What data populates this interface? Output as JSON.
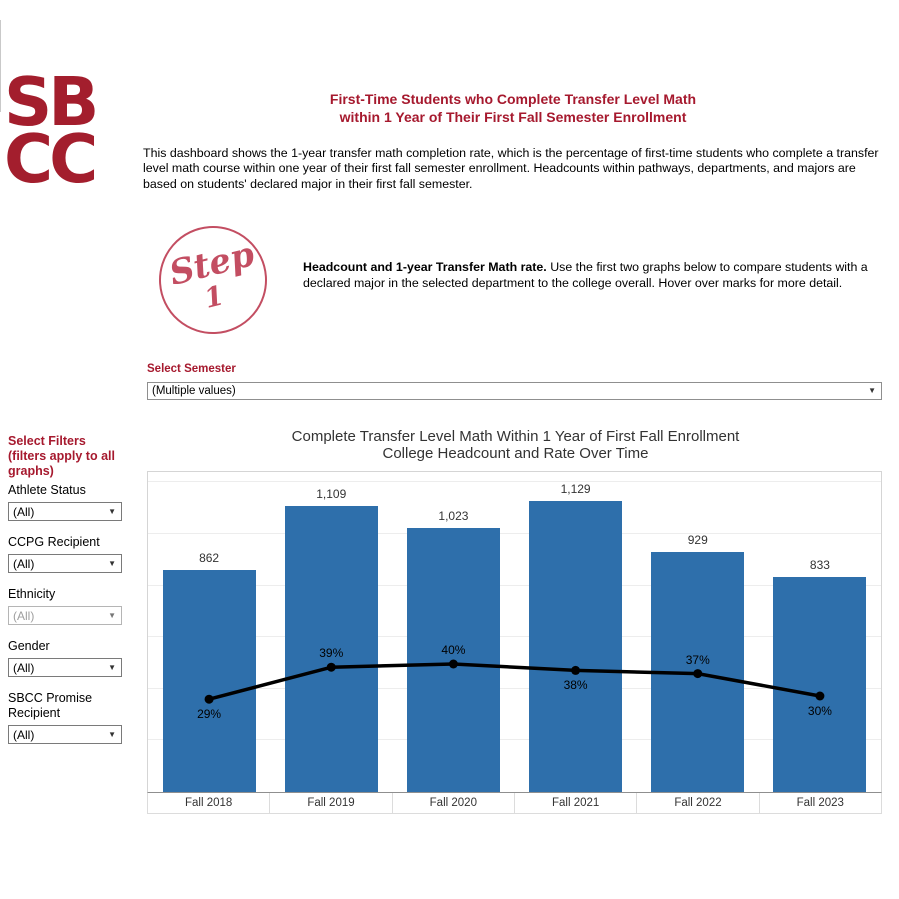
{
  "colors": {
    "accent_crimson": "#A6192E",
    "logo_red": "#A31E2D",
    "step_rose": "#C34E62",
    "bar_blue": "#2E6FAB",
    "line_black": "#000000"
  },
  "logo": {
    "line1": "SB",
    "line2": "CC"
  },
  "header": {
    "title_line1": "First-Time Students who Complete Transfer Level Math",
    "title_line2": "within 1 Year of Their First Fall Semester Enrollment",
    "description": "This dashboard shows the 1-year transfer math completion rate, which is the percentage of first-time students who complete a transfer level math course within one year of their first fall semester enrollment. Headcounts within pathways, departments, and majors are based on students' declared major in their first fall semester."
  },
  "step": {
    "word": "Step",
    "number": "1",
    "bold_text": "Headcount and 1-year Transfer Math rate.",
    "body_text": " Use the first two graphs below to compare students with a declared major in the selected department to the college overall. Hover over marks for more detail."
  },
  "semester_filter": {
    "label": "Select Semester",
    "value": "(Multiple values)"
  },
  "sidebar": {
    "heading": "Select Filters (filters apply to all graphs)",
    "filters": [
      {
        "label": "Athlete Status",
        "value": "(All)",
        "disabled": false
      },
      {
        "label": "CCPG Recipient",
        "value": "(All)",
        "disabled": false
      },
      {
        "label": "Ethnicity",
        "value": "(All)",
        "disabled": true
      },
      {
        "label": "Gender",
        "value": "(All)",
        "disabled": false
      },
      {
        "label": "SBCC Promise Recipient",
        "value": "(All)",
        "disabled": false
      }
    ]
  },
  "chart_data": {
    "type": "combo",
    "title_lines": [
      "Complete Transfer Level Math Within 1 Year of First Fall Enrollment",
      "College Headcount and Rate Over Time"
    ],
    "categories": [
      "Fall 2018",
      "Fall 2019",
      "Fall 2020",
      "Fall 2021",
      "Fall 2022",
      "Fall 2023"
    ],
    "series": [
      {
        "name": "College Headcount",
        "type": "bar",
        "values": [
          862,
          1109,
          1023,
          1129,
          929,
          833
        ],
        "labels": [
          "862",
          "1,109",
          "1,023",
          "1,129",
          "929",
          "833"
        ],
        "color": "#2E6FAB"
      },
      {
        "name": "1-Year Transfer Math Completion Rate",
        "type": "line",
        "values": [
          29,
          39,
          40,
          38,
          37,
          30
        ],
        "labels": [
          "29%",
          "39%",
          "40%",
          "38%",
          "37%",
          "30%"
        ],
        "label_positions": [
          "below",
          "above",
          "above",
          "below",
          "above",
          "below"
        ],
        "color": "#000000"
      }
    ],
    "bar_axis": {
      "min": 0,
      "max": 1240,
      "gridline_values": [
        200,
        400,
        600,
        800,
        1000,
        1200
      ]
    },
    "rate_axis": {
      "min": 0,
      "max": 100,
      "unit": "%"
    },
    "grid": "horizontal",
    "legend": "none"
  }
}
